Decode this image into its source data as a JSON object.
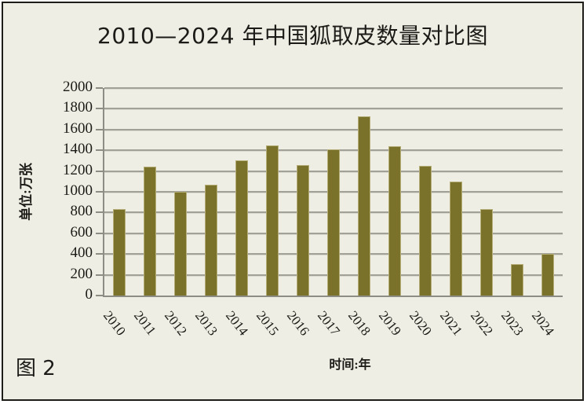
{
  "caption": "图 2",
  "colors": {
    "background": "#efeee4",
    "bar": "#7a722a",
    "bar_edge": "#b6ae79",
    "gridline": "#a1a198",
    "axis": "#8d8d85",
    "border": "#1e1d1a",
    "text": "#1c1b17"
  },
  "chart_data": {
    "type": "bar",
    "title": "2010—2024 年中国狐取皮数量对比图",
    "categories": [
      "2010",
      "2011",
      "2012",
      "2013",
      "2014",
      "2015",
      "2016",
      "2017",
      "2018",
      "2019",
      "2020",
      "2021",
      "2022",
      "2023",
      "2024"
    ],
    "values": [
      830,
      1240,
      1000,
      1070,
      1300,
      1450,
      1260,
      1410,
      1730,
      1440,
      1250,
      1100,
      830,
      300,
      400
    ],
    "xlabel": "时间:年",
    "ylabel": "单位:万张",
    "ylim": [
      0,
      2000
    ],
    "ytick_step": 200,
    "grid": true,
    "legend": false
  }
}
